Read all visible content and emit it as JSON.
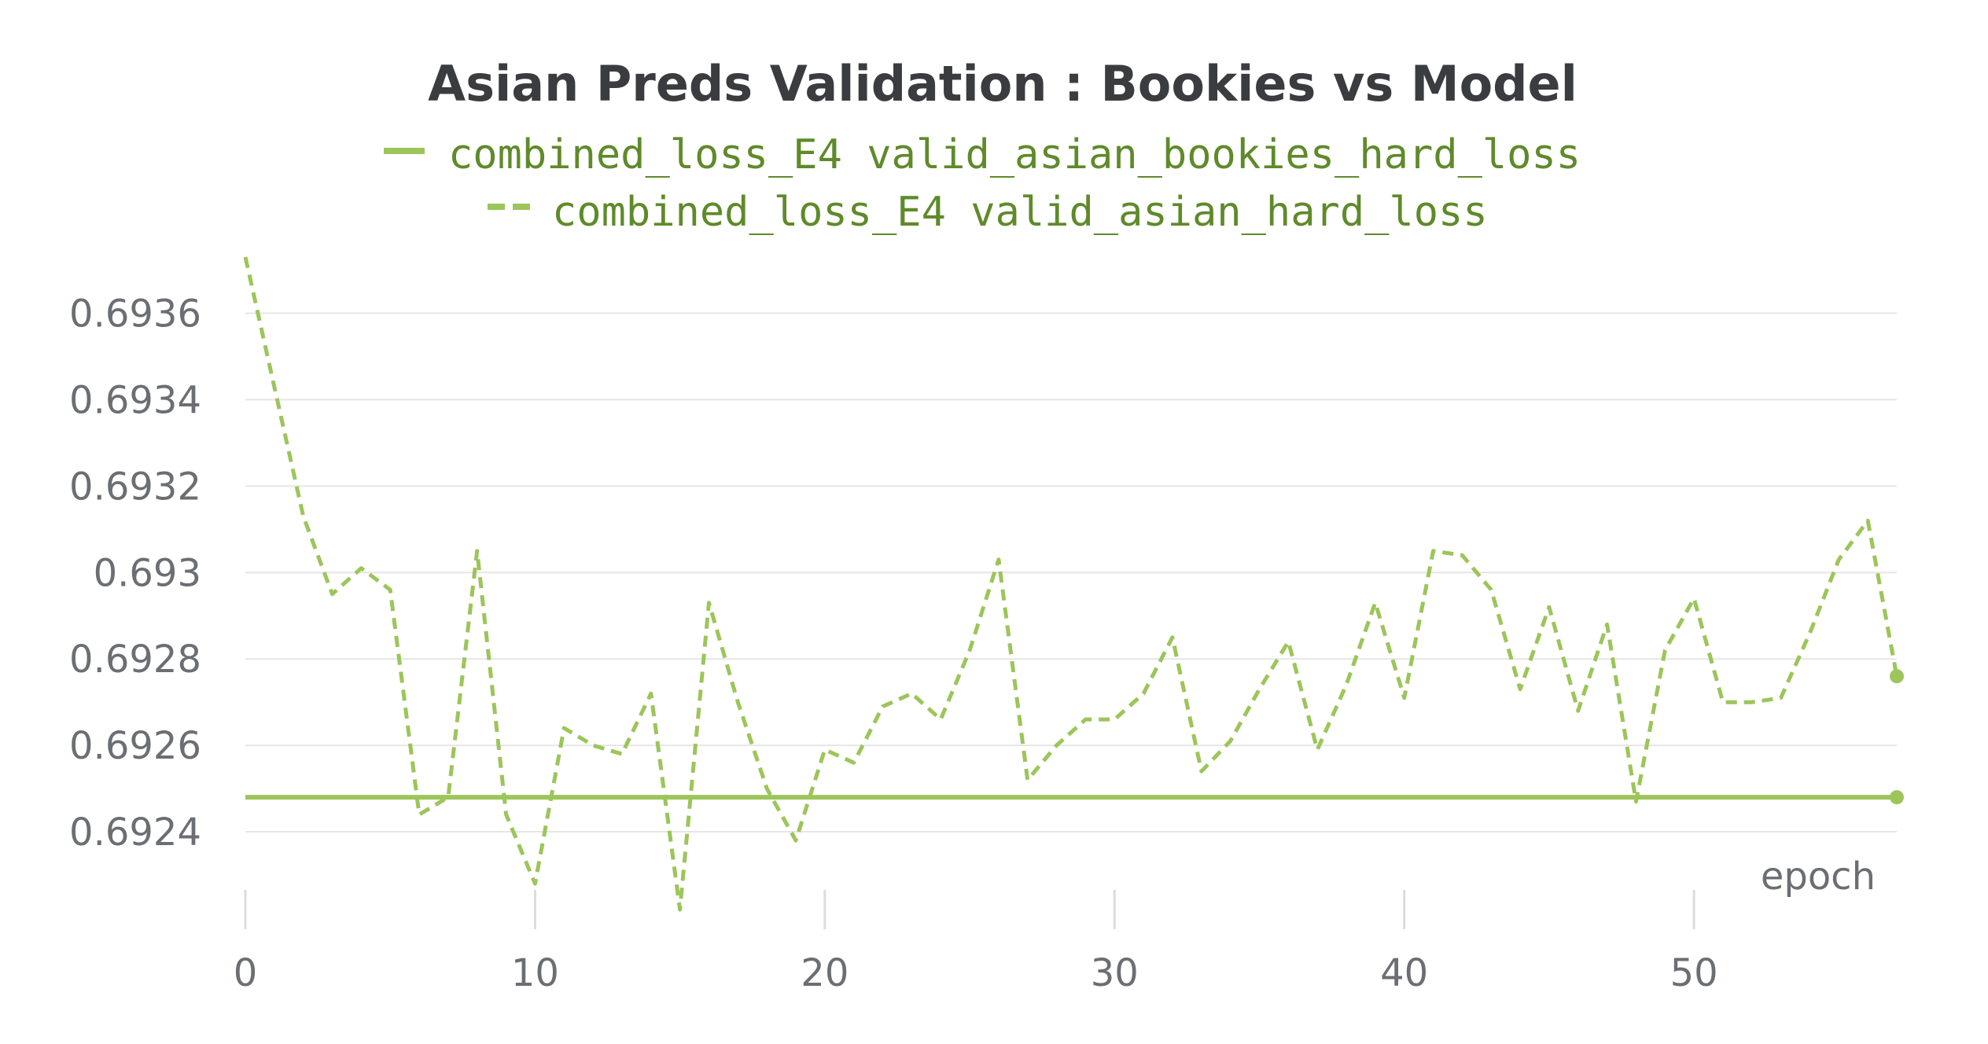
{
  "colors": {
    "series": "#9cc55a",
    "grid": "#e6e6e6",
    "tick_marks": "#dcdcdc",
    "text": "#3a3c40",
    "legend_text": "#5f8a2a",
    "tick_text": "#6b6e73"
  },
  "chart_data": {
    "type": "line",
    "title": "Asian Preds Validation : Bookies vs Model",
    "xlabel": "epoch",
    "ylabel": "",
    "xlim": [
      0,
      57
    ],
    "ylim": [
      0.69222,
      0.69373
    ],
    "grid": true,
    "legend_position": "top-center",
    "x_ticks": [
      0,
      10,
      20,
      30,
      40,
      50
    ],
    "y_ticks": [
      0.6924,
      0.6926,
      0.6928,
      0.693,
      0.6932,
      0.6934,
      0.6936
    ],
    "y_tick_labels": [
      "0.6924",
      "0.6926",
      "0.6928",
      "0.693",
      "0.6932",
      "0.6934",
      "0.6936"
    ],
    "x": [
      0,
      1,
      2,
      3,
      4,
      5,
      6,
      7,
      8,
      9,
      10,
      11,
      12,
      13,
      14,
      15,
      16,
      17,
      18,
      19,
      20,
      21,
      22,
      23,
      24,
      25,
      26,
      27,
      28,
      29,
      30,
      31,
      32,
      33,
      34,
      35,
      36,
      37,
      38,
      39,
      40,
      41,
      42,
      43,
      44,
      45,
      46,
      47,
      48,
      49,
      50,
      51,
      52,
      53,
      54,
      55,
      56,
      57
    ],
    "series": [
      {
        "name": "combined_loss_E4 valid_asian_bookies_hard_loss",
        "dash": "solid",
        "values": [
          0.69248,
          0.69248,
          0.69248,
          0.69248,
          0.69248,
          0.69248,
          0.69248,
          0.69248,
          0.69248,
          0.69248,
          0.69248,
          0.69248,
          0.69248,
          0.69248,
          0.69248,
          0.69248,
          0.69248,
          0.69248,
          0.69248,
          0.69248,
          0.69248,
          0.69248,
          0.69248,
          0.69248,
          0.69248,
          0.69248,
          0.69248,
          0.69248,
          0.69248,
          0.69248,
          0.69248,
          0.69248,
          0.69248,
          0.69248,
          0.69248,
          0.69248,
          0.69248,
          0.69248,
          0.69248,
          0.69248,
          0.69248,
          0.69248,
          0.69248,
          0.69248,
          0.69248,
          0.69248,
          0.69248,
          0.69248,
          0.69248,
          0.69248,
          0.69248,
          0.69248,
          0.69248,
          0.69248,
          0.69248,
          0.69248,
          0.69248,
          0.69248
        ]
      },
      {
        "name": "combined_loss_E4 valid_asian_hard_loss",
        "dash": "dashed",
        "values": [
          0.69373,
          0.69343,
          0.69313,
          0.69295,
          0.69301,
          0.69296,
          0.69244,
          0.69248,
          0.69305,
          0.69244,
          0.69228,
          0.69264,
          0.6926,
          0.69258,
          0.69272,
          0.69222,
          0.69293,
          0.6927,
          0.6925,
          0.69238,
          0.69259,
          0.69256,
          0.69269,
          0.69272,
          0.69266,
          0.69282,
          0.69303,
          0.69252,
          0.6926,
          0.69266,
          0.69266,
          0.69272,
          0.69285,
          0.69254,
          0.69261,
          0.69273,
          0.69284,
          0.69259,
          0.69274,
          0.69293,
          0.69271,
          0.69305,
          0.69304,
          0.69296,
          0.69273,
          0.69292,
          0.69268,
          0.69288,
          0.69247,
          0.69282,
          0.69294,
          0.6927,
          0.6927,
          0.69271,
          0.69286,
          0.69303,
          0.69312,
          0.69276
        ]
      }
    ]
  }
}
